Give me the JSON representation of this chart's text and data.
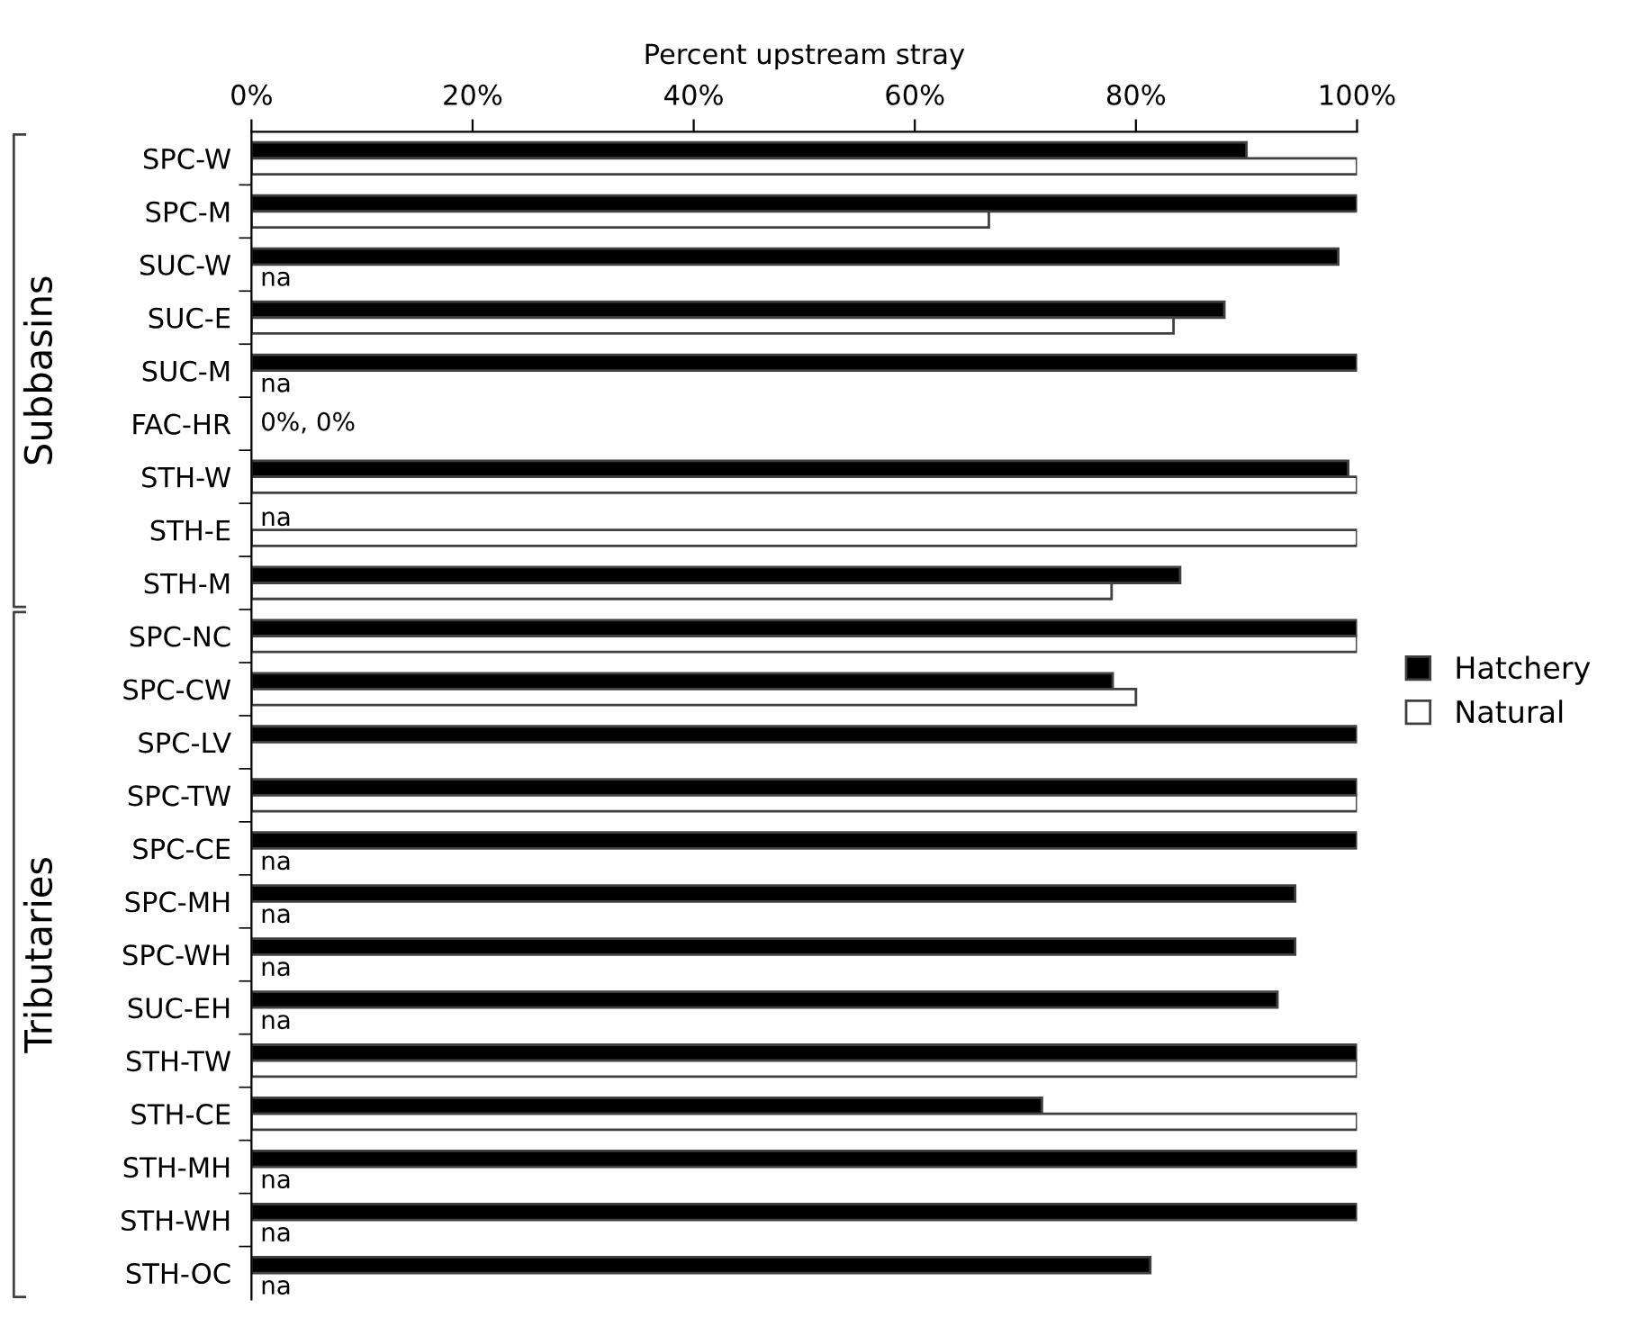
{
  "chart_data": {
    "type": "bar",
    "orientation": "horizontal",
    "xlabel": "Percent upstream stray",
    "categories": [
      "SPC-W",
      "SPC-M",
      "SUC-W",
      "SUC-E",
      "SUC-M",
      "FAC-HR",
      "STH-W",
      "STH-E",
      "STH-M",
      "SPC-NC",
      "SPC-CW",
      "SPC-LV",
      "SPC-TW",
      "SPC-CE",
      "SPC-MH",
      "SPC-WH",
      "SUC-EH",
      "STH-TW",
      "STH-CE",
      "STH-MH",
      "STH-WH",
      "STH-OC"
    ],
    "series": [
      {
        "name": "Hatchery",
        "color": "#000000",
        "values": [
          90.0,
          100,
          98.3,
          88.0,
          100,
          0,
          99.2,
          null,
          84.0,
          100,
          77.9,
          100,
          100,
          100,
          94.4,
          94.4,
          92.8,
          100,
          71.5,
          100,
          100,
          81.3
        ],
        "value_labels": [
          null,
          null,
          null,
          null,
          null,
          null,
          null,
          "na",
          null,
          null,
          null,
          null,
          null,
          null,
          null,
          null,
          null,
          null,
          null,
          null,
          null,
          null
        ]
      },
      {
        "name": "Natural",
        "color": "#ffffff",
        "values": [
          100,
          66.7,
          null,
          83.4,
          null,
          0,
          100,
          100,
          77.8,
          100,
          80.0,
          0,
          100,
          null,
          null,
          null,
          null,
          100,
          100,
          null,
          null,
          null
        ],
        "value_labels": [
          null,
          null,
          "na",
          null,
          "na",
          null,
          null,
          null,
          null,
          null,
          null,
          null,
          null,
          "na",
          "na",
          "na",
          "na",
          null,
          null,
          "na",
          "na",
          "na"
        ]
      }
    ],
    "xlim": [
      0,
      100
    ],
    "xticks": [
      {
        "value": 0,
        "label": "0%"
      },
      {
        "value": 20,
        "label": "20%"
      },
      {
        "value": 40,
        "label": "40%"
      },
      {
        "value": 60,
        "label": "60%"
      },
      {
        "value": 80,
        "label": "80%"
      },
      {
        "value": 100,
        "label": "100%"
      }
    ],
    "annotations": [
      {
        "text": "0%, 0%",
        "x": 0,
        "y": "FAC-HR"
      },
      "Subbasins",
      "Tributaries"
    ],
    "legend": "right",
    "grid": false
  }
}
